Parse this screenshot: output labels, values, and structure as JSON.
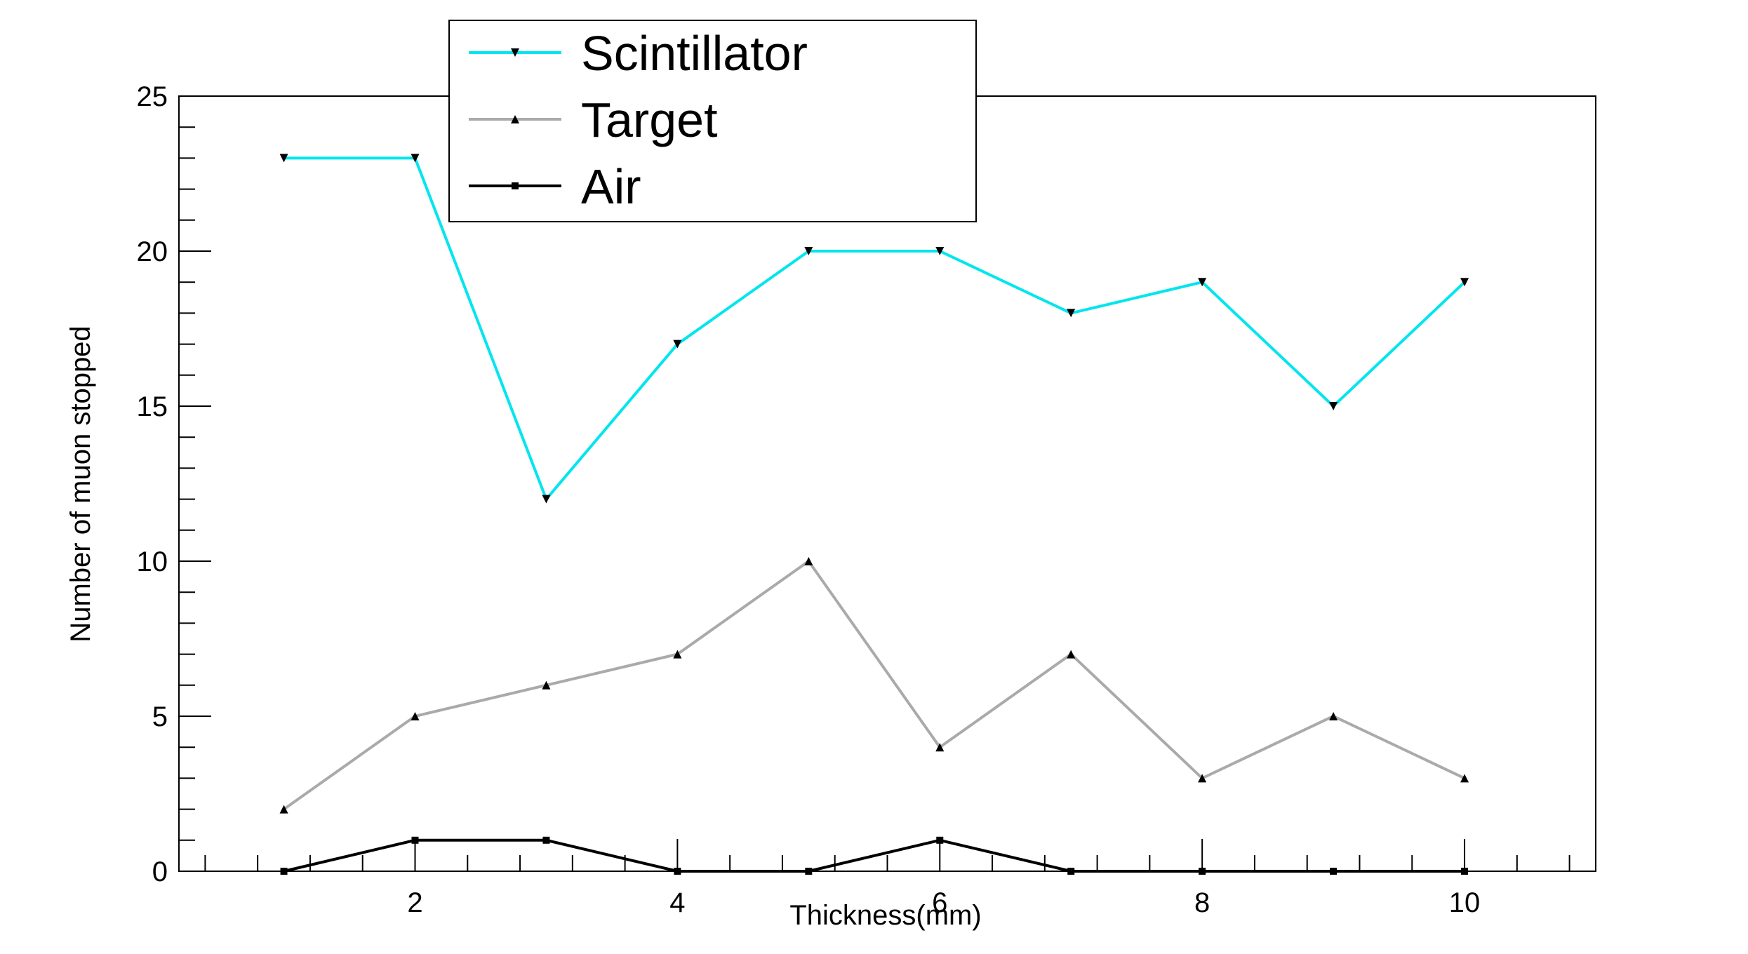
{
  "chart_data": {
    "type": "line",
    "title": "",
    "xlabel": "Thickness(mm)",
    "ylabel": "Number of muon stopped",
    "xlim": [
      0.2,
      11.0
    ],
    "ylim": [
      0,
      25
    ],
    "x_ticks": [
      2,
      4,
      6,
      8,
      10
    ],
    "y_ticks": [
      0,
      5,
      10,
      15,
      20,
      25
    ],
    "grid": false,
    "legend_position": "top-center",
    "x": [
      1,
      2,
      3,
      4,
      5,
      6,
      7,
      8,
      9,
      10
    ],
    "series": [
      {
        "name": "Scintillator",
        "color": "#00e5ee",
        "marker": "triangle-down",
        "values": [
          23,
          23,
          12,
          17,
          20,
          20,
          18,
          19,
          15,
          19
        ]
      },
      {
        "name": "Target",
        "color": "#aaaaaa",
        "marker": "triangle-up",
        "values": [
          2,
          5,
          6,
          7,
          10,
          4,
          7,
          3,
          5,
          3
        ]
      },
      {
        "name": "Air",
        "color": "#000000",
        "marker": "square",
        "values": [
          0,
          1,
          1,
          0,
          0,
          1,
          0,
          0,
          0,
          0
        ]
      }
    ]
  }
}
